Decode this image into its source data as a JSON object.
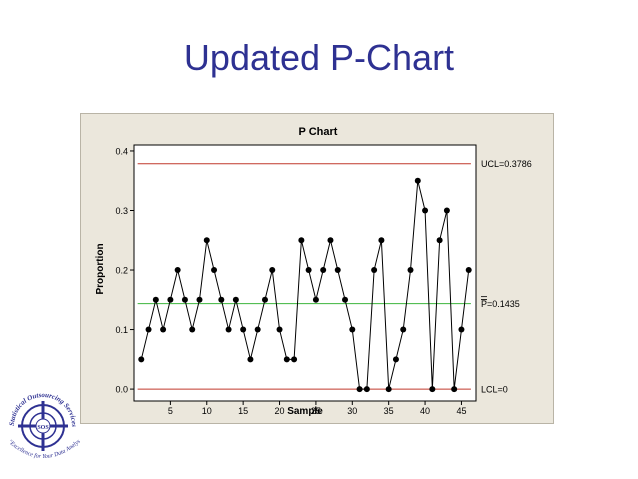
{
  "slide": {
    "title": "Updated P-Chart"
  },
  "logo": {
    "ring_text": "Statistical Outsourcing Services",
    "tagline": "\"Excellence for Your Data Analysis\"",
    "monogram": "SOS"
  },
  "chart_data": {
    "type": "line",
    "title": "P Chart",
    "xlabel": "Sample",
    "ylabel": "Proportion",
    "x": [
      1,
      2,
      3,
      4,
      5,
      6,
      7,
      8,
      9,
      10,
      11,
      12,
      13,
      14,
      15,
      16,
      17,
      18,
      19,
      20,
      21,
      22,
      23,
      24,
      25,
      26,
      27,
      28,
      29,
      30,
      31,
      32,
      33,
      34,
      35,
      36,
      37,
      38,
      39,
      40,
      41,
      42,
      43,
      44,
      45,
      46
    ],
    "values": [
      0.05,
      0.1,
      0.15,
      0.1,
      0.15,
      0.2,
      0.15,
      0.1,
      0.15,
      0.25,
      0.2,
      0.15,
      0.1,
      0.15,
      0.1,
      0.05,
      0.1,
      0.15,
      0.2,
      0.1,
      0.05,
      0.05,
      0.25,
      0.2,
      0.15,
      0.2,
      0.25,
      0.2,
      0.15,
      0.1,
      0.0,
      0.0,
      0.2,
      0.25,
      0.0,
      0.05,
      0.1,
      0.2,
      0.35,
      0.3,
      0.0,
      0.25,
      0.3,
      0.0,
      0.1,
      0.2
    ],
    "xlim": [
      0,
      47
    ],
    "ylim": [
      -0.02,
      0.41
    ],
    "xticks": [
      5,
      10,
      15,
      20,
      25,
      30,
      35,
      40,
      45
    ],
    "yticks": [
      0.0,
      0.1,
      0.2,
      0.3,
      0.4
    ],
    "ytick_labels": [
      "0.0",
      "0.1",
      "0.2",
      "0.3",
      "0.4"
    ],
    "ucl": {
      "value": 0.3786,
      "label": "UCL=0.3786",
      "color": "#c0392b"
    },
    "center": {
      "value": 0.1435,
      "label_symbol": "P",
      "label_value": "=0.1435",
      "color": "#3cb43c"
    },
    "lcl": {
      "value": 0,
      "label": "LCL=0",
      "color": "#c0392b"
    },
    "series_color": "#000000",
    "grid": false
  }
}
